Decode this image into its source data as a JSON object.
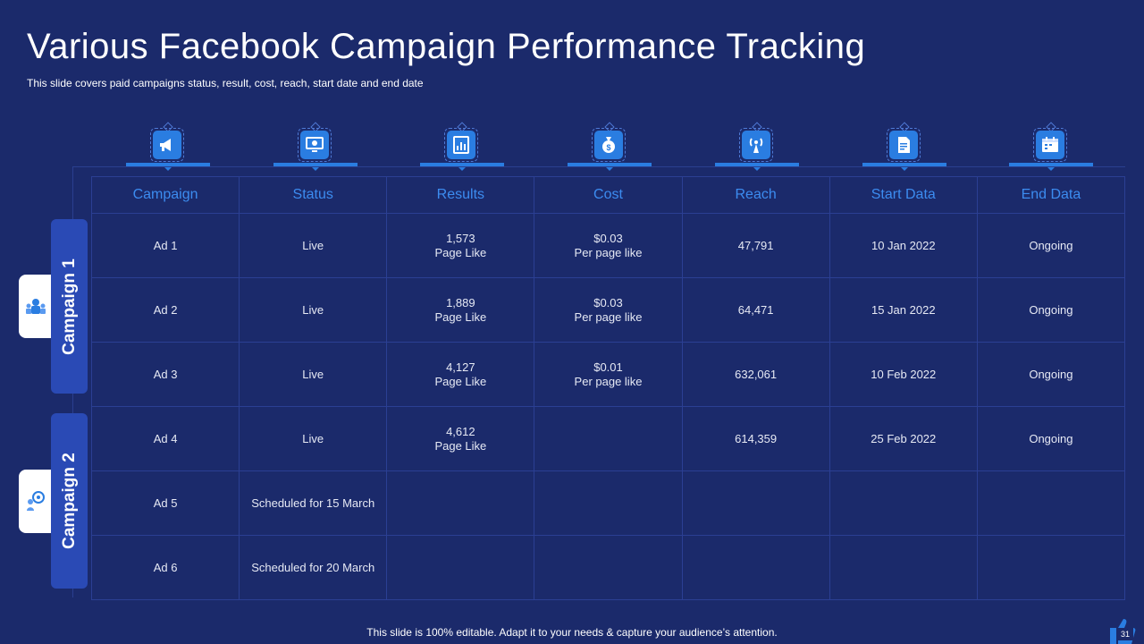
{
  "slide": {
    "title": "Various Facebook Campaign Performance Tracking",
    "subtitle": "This slide covers paid campaigns status, result, cost, reach, start date and end date",
    "footer": "This slide is 100% editable. Adapt it to your needs & capture your audience’s attention.",
    "page_number": "31"
  },
  "header_icons": [
    "megaphone-icon",
    "monitor-icon",
    "results-chart-icon",
    "money-bag-icon",
    "broadcast-icon",
    "document-icon",
    "calendar-icon"
  ],
  "table": {
    "columns": [
      "Campaign",
      "Status",
      "Results",
      "Cost",
      "Reach",
      "Start Data",
      "End Data"
    ],
    "rows": [
      {
        "campaign": "Ad 1",
        "status": "Live",
        "results_value": "1,573",
        "results_unit": "Page Like",
        "cost_value": "$0.03",
        "cost_unit": "Per page like",
        "reach": "47,791",
        "start": "10 Jan 2022",
        "end": "Ongoing"
      },
      {
        "campaign": "Ad 2",
        "status": "Live",
        "results_value": "1,889",
        "results_unit": "Page Like",
        "cost_value": "$0.03",
        "cost_unit": "Per page like",
        "reach": "64,471",
        "start": "15 Jan 2022",
        "end": "Ongoing"
      },
      {
        "campaign": "Ad 3",
        "status": "Live",
        "results_value": "4,127",
        "results_unit": "Page Like",
        "cost_value": "$0.01",
        "cost_unit": "Per page like",
        "reach": "632,061",
        "start": "10 Feb 2022",
        "end": "Ongoing"
      },
      {
        "campaign": "Ad 4",
        "status": "Live",
        "results_value": "4,612",
        "results_unit": "Page Like",
        "cost_value": "",
        "cost_unit": "",
        "reach": "614,359",
        "start": "25 Feb 2022",
        "end": "Ongoing"
      },
      {
        "campaign": "Ad 5",
        "status": "Scheduled for 15 March",
        "results_value": "",
        "results_unit": "",
        "cost_value": "",
        "cost_unit": "",
        "reach": "",
        "start": "",
        "end": ""
      },
      {
        "campaign": "Ad 6",
        "status": "Scheduled for 20 March",
        "results_value": "",
        "results_unit": "",
        "cost_value": "",
        "cost_unit": "",
        "reach": "",
        "start": "",
        "end": ""
      }
    ]
  },
  "groups": [
    {
      "label": "Campaign 1",
      "icon": "team-icon"
    },
    {
      "label": "Campaign 2",
      "icon": "target-person-icon"
    }
  ],
  "colors": {
    "background": "#1b2a6b",
    "accent": "#2a7de1",
    "header_text": "#3c8cf0",
    "tab": "#2a4ab5"
  }
}
